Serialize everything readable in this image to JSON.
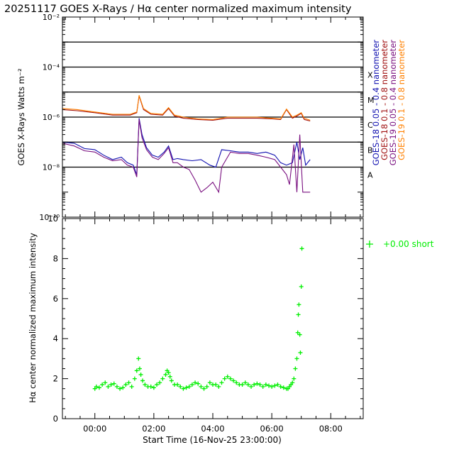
{
  "title": "20251117 GOES X-Rays / Hα center normalized maximum intensity",
  "colors": {
    "goes18_short": "#1010b0",
    "goes18_long": "#a01010",
    "goes19_short": "#7a1080",
    "goes19_long": "#ff8000",
    "halpha": "#00ee00",
    "grid": "#000000"
  },
  "chart_data": [
    {
      "type": "line",
      "title": "GOES X-Rays",
      "ylabel": "GOES X-Rays Watts m⁻²",
      "yscale": "log",
      "ylim": [
        1e-10,
        0.01
      ],
      "xlim": [
        -1.1,
        9.1
      ],
      "x_unit": "hours since 16-Nov-25 23:00:00",
      "ytick_labels": [
        "10⁻¹⁰",
        "10⁻⁸",
        "10⁻⁶",
        "10⁻⁴",
        "10⁻²"
      ],
      "ytick_values": [
        1e-10,
        1e-08,
        1e-06,
        0.0001,
        0.01
      ],
      "flare_class_lines": [
        1e-07,
        1e-06,
        1e-05,
        0.0001,
        0.001
      ],
      "flare_class_labels": [
        {
          "label": "A",
          "value": 1e-08
        },
        {
          "label": "B",
          "value": 1e-07
        },
        {
          "label": "C",
          "value": 1e-06
        },
        {
          "label": "M",
          "value": 1e-05
        },
        {
          "label": "X",
          "value": 0.0001
        }
      ],
      "legend": [
        "GOES-18  0.05 - 0.4 nanometer",
        "GOES-18  0.1  - 0.8 nanometer",
        "GOES-19  0.05 - 0.4 nanometer",
        "GOES-19  0.1  - 0.8 nanometer"
      ],
      "series": [
        {
          "name": "GOES-18  0.05 - 0.4 nanometer",
          "color_key": "goes18_short",
          "x": [
            -1.1,
            -0.7,
            -0.35,
            0.0,
            0.3,
            0.6,
            0.9,
            1.1,
            1.3,
            1.42,
            1.5,
            1.6,
            1.75,
            1.95,
            2.15,
            2.35,
            2.5,
            2.65,
            2.8,
            3.0,
            3.3,
            3.6,
            3.9,
            4.1,
            4.3,
            4.6,
            4.9,
            5.2,
            5.5,
            5.8,
            6.1,
            6.3,
            6.5,
            6.7,
            6.85,
            6.95,
            7.05,
            7.15,
            7.3
          ],
          "y": [
            1e-07,
            9e-08,
            5.5e-08,
            5e-08,
            3e-08,
            2e-08,
            2.5e-08,
            1.5e-08,
            1.2e-08,
            5e-09,
            9e-07,
            2e-07,
            6e-08,
            3e-08,
            2.5e-08,
            4e-08,
            7e-08,
            2e-08,
            2.2e-08,
            2e-08,
            1.8e-08,
            2e-08,
            1.2e-08,
            1e-08,
            5e-08,
            4.5e-08,
            4e-08,
            4e-08,
            3.5e-08,
            4e-08,
            3e-08,
            1.5e-08,
            1.2e-08,
            1.5e-08,
            1e-07,
            2e-08,
            6e-08,
            1.2e-08,
            2e-08
          ]
        },
        {
          "name": "GOES-18  0.1  - 0.8 nanometer",
          "color_key": "goes18_long",
          "x": [
            -1.1,
            -0.6,
            0.0,
            0.6,
            1.2,
            1.42,
            1.5,
            1.65,
            1.9,
            2.3,
            2.5,
            2.7,
            3.0,
            3.5,
            4.0,
            4.5,
            5.0,
            5.5,
            6.0,
            6.3,
            6.5,
            6.7,
            6.85,
            7.0,
            7.1,
            7.3
          ],
          "y": [
            2e-06,
            1.8e-06,
            1.5e-06,
            1.2e-06,
            1.2e-06,
            1.5e-06,
            7e-06,
            2e-06,
            1.3e-06,
            1.2e-06,
            2.2e-06,
            1.1e-06,
            9e-07,
            8e-07,
            7.5e-07,
            9e-07,
            9e-07,
            9e-07,
            8.5e-07,
            8e-07,
            2e-06,
            9e-07,
            1.1e-06,
            1.4e-06,
            8e-07,
            7e-07
          ]
        },
        {
          "name": "GOES-19  0.05 - 0.4 nanometer",
          "color_key": "goes19_short",
          "x": [
            -1.1,
            -0.7,
            -0.35,
            0.0,
            0.3,
            0.6,
            0.9,
            1.1,
            1.3,
            1.42,
            1.5,
            1.6,
            1.75,
            1.95,
            2.15,
            2.35,
            2.5,
            2.65,
            2.8,
            3.0,
            3.2,
            3.4,
            3.6,
            3.8,
            4.0,
            4.2,
            4.3,
            4.6,
            4.9,
            5.2,
            5.5,
            5.8,
            6.1,
            6.3,
            6.5,
            6.6,
            6.75,
            6.85,
            6.95,
            7.05,
            7.15,
            7.3
          ],
          "y": [
            9e-08,
            7e-08,
            4.5e-08,
            4e-08,
            2.5e-08,
            1.8e-08,
            2e-08,
            1.2e-08,
            1e-08,
            4e-09,
            8e-07,
            1.5e-07,
            5e-08,
            2.5e-08,
            2e-08,
            3.5e-08,
            6e-08,
            1.5e-08,
            1.5e-08,
            1e-08,
            8e-09,
            3e-09,
            1e-09,
            1.5e-09,
            2.5e-09,
            1e-09,
            1e-08,
            4e-08,
            3.5e-08,
            3.5e-08,
            3e-08,
            2.5e-08,
            2e-08,
            1e-08,
            5e-09,
            2e-09,
            8e-08,
            1e-09,
            2e-07,
            1e-09,
            1e-09,
            1e-09
          ]
        },
        {
          "name": "GOES-19  0.1  - 0.8 nanometer",
          "color_key": "goes19_long",
          "x": [
            -1.1,
            -0.6,
            0.0,
            0.6,
            1.2,
            1.42,
            1.5,
            1.65,
            1.9,
            2.3,
            2.5,
            2.7,
            3.0,
            3.5,
            4.0,
            4.5,
            5.0,
            5.5,
            6.0,
            6.3,
            6.5,
            6.7,
            6.85,
            7.0,
            7.1,
            7.3
          ],
          "y": [
            2.2e-06,
            2e-06,
            1.6e-06,
            1.3e-06,
            1.3e-06,
            1.6e-06,
            7.5e-06,
            2.2e-06,
            1.4e-06,
            1.3e-06,
            2.4e-06,
            1.2e-06,
            1e-06,
            8.5e-07,
            8e-07,
            1e-06,
            1e-06,
            1e-06,
            9e-07,
            8.5e-07,
            2.1e-06,
            1e-06,
            1.2e-06,
            1.5e-06,
            9e-07,
            7.5e-07
          ]
        }
      ]
    },
    {
      "type": "scatter",
      "title": "Hα center normalized maximum intensity",
      "ylabel": "Hα center normalized maximum intensity",
      "xlabel": "Start Time (16-Nov-25 23:00:00)",
      "ylim": [
        0,
        10
      ],
      "xlim": [
        -1.1,
        9.1
      ],
      "yticks": [
        0,
        2,
        4,
        6,
        8,
        10
      ],
      "xtick_values": [
        0,
        2,
        4,
        6,
        8
      ],
      "xtick_labels": [
        "00:00",
        "02:00",
        "04:00",
        "06:00",
        "08:00"
      ],
      "legend_label": "+0.00 short",
      "series": [
        {
          "name": "Hα",
          "color_key": "halpha",
          "x": [
            0.0,
            0.05,
            0.15,
            0.25,
            0.35,
            0.45,
            0.55,
            0.65,
            0.75,
            0.85,
            0.95,
            1.05,
            1.15,
            1.25,
            1.35,
            1.42,
            1.48,
            1.52,
            1.56,
            1.62,
            1.7,
            1.8,
            1.9,
            2.0,
            2.1,
            2.2,
            2.3,
            2.4,
            2.45,
            2.5,
            2.55,
            2.6,
            2.7,
            2.8,
            2.9,
            3.0,
            3.1,
            3.2,
            3.3,
            3.4,
            3.5,
            3.6,
            3.7,
            3.8,
            3.9,
            4.0,
            4.1,
            4.2,
            4.3,
            4.4,
            4.5,
            4.6,
            4.7,
            4.8,
            4.9,
            5.0,
            5.1,
            5.2,
            5.3,
            5.4,
            5.5,
            5.6,
            5.7,
            5.8,
            5.9,
            6.0,
            6.1,
            6.2,
            6.3,
            6.4,
            6.5,
            6.55,
            6.6,
            6.65,
            6.7,
            6.75,
            6.8,
            6.85,
            6.88,
            6.9,
            6.92,
            6.95,
            6.97,
            7.0,
            7.02
          ],
          "y": [
            1.5,
            1.6,
            1.55,
            1.7,
            1.8,
            1.6,
            1.7,
            1.75,
            1.6,
            1.5,
            1.55,
            1.7,
            1.8,
            1.6,
            2.0,
            2.4,
            3.0,
            2.5,
            2.2,
            1.9,
            1.7,
            1.6,
            1.6,
            1.55,
            1.7,
            1.8,
            2.0,
            2.2,
            2.4,
            2.3,
            2.1,
            1.9,
            1.7,
            1.7,
            1.6,
            1.5,
            1.55,
            1.6,
            1.7,
            1.8,
            1.75,
            1.6,
            1.5,
            1.6,
            1.8,
            1.7,
            1.7,
            1.6,
            1.8,
            2.0,
            2.1,
            2.0,
            1.9,
            1.8,
            1.7,
            1.7,
            1.8,
            1.7,
            1.6,
            1.7,
            1.75,
            1.7,
            1.6,
            1.7,
            1.65,
            1.6,
            1.65,
            1.7,
            1.6,
            1.55,
            1.5,
            1.5,
            1.6,
            1.7,
            1.8,
            2.0,
            2.5,
            3.0,
            4.3,
            5.2,
            5.7,
            4.2,
            3.3,
            6.6,
            8.5
          ]
        }
      ]
    }
  ]
}
